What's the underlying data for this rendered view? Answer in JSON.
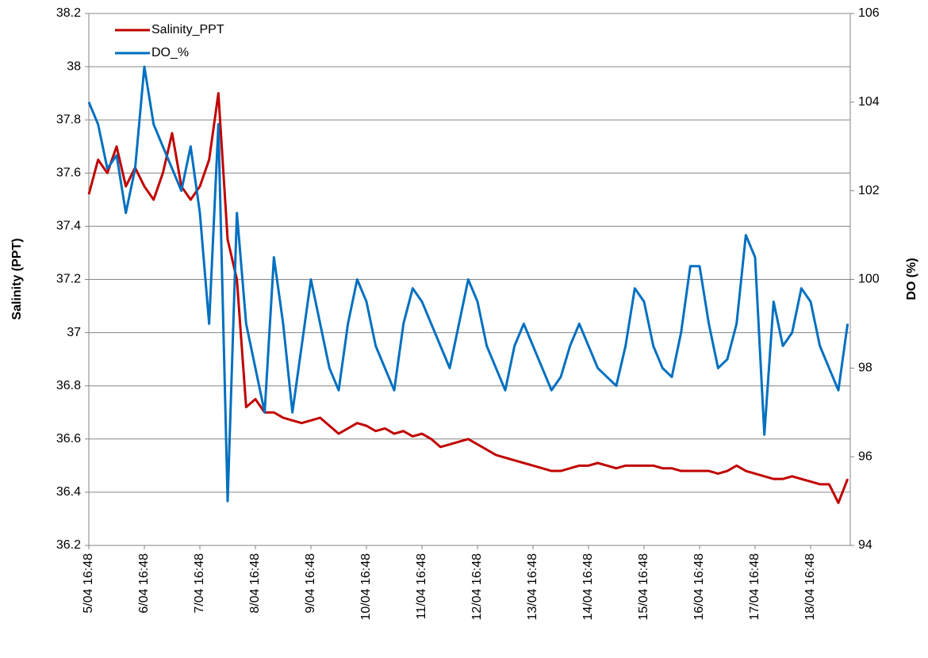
{
  "chart_data": {
    "type": "line",
    "y_label": "Salinity (PPT)",
    "y2_label": "DO (%)",
    "categories": [
      "5/04 16:48",
      null,
      null,
      null,
      null,
      null,
      "6/04 16:48",
      null,
      null,
      null,
      null,
      null,
      "7/04 16:48",
      null,
      null,
      null,
      null,
      null,
      "8/04 16:48",
      null,
      null,
      null,
      null,
      null,
      "9/04 16:48",
      null,
      null,
      null,
      null,
      null,
      "10/04 16:48",
      null,
      null,
      null,
      null,
      null,
      "11/04 16:48",
      null,
      null,
      null,
      null,
      null,
      "12/04 16:48",
      null,
      null,
      null,
      null,
      null,
      "13/04 16:48",
      null,
      null,
      null,
      null,
      null,
      "14/04 16:48",
      null,
      null,
      null,
      null,
      null,
      "15/04 16:48",
      null,
      null,
      null,
      null,
      null,
      "16/04 16:48",
      null,
      null,
      null,
      null,
      null,
      "17/04 16:48",
      null,
      null,
      null,
      null,
      null,
      "18/04 16:48",
      null,
      null,
      null,
      null
    ],
    "series": [
      {
        "name": "Salinity_PPT",
        "color": "#c00000",
        "values": [
          37.52,
          37.65,
          37.6,
          37.7,
          37.55,
          37.62,
          37.55,
          37.5,
          37.6,
          37.75,
          37.55,
          37.5,
          37.55,
          37.65,
          37.9,
          37.35,
          37.2,
          36.72,
          36.75,
          36.7,
          36.7,
          36.68,
          36.67,
          36.66,
          36.67,
          36.68,
          36.65,
          36.62,
          36.64,
          36.66,
          36.65,
          36.63,
          36.64,
          36.62,
          36.63,
          36.61,
          36.62,
          36.6,
          36.57,
          36.58,
          36.59,
          36.6,
          36.58,
          36.56,
          36.54,
          36.53,
          36.52,
          36.51,
          36.5,
          36.49,
          36.48,
          36.48,
          36.49,
          36.5,
          36.5,
          36.51,
          36.5,
          36.49,
          36.5,
          36.5,
          36.5,
          36.5,
          36.49,
          36.49,
          36.48,
          36.48,
          36.48,
          36.48,
          36.47,
          36.48,
          36.5,
          36.48,
          36.47,
          36.46,
          36.45,
          36.45,
          36.46,
          36.45,
          36.44,
          36.43,
          36.43,
          36.36,
          36.45
        ]
      },
      {
        "name": "DO_%",
        "color": "#0070c0",
        "axis": "y2",
        "values": [
          104,
          103.5,
          102.5,
          102.8,
          101.5,
          102.5,
          104.8,
          103.5,
          103,
          102.5,
          102,
          103,
          101.5,
          99,
          103.5,
          95,
          101.5,
          99,
          98,
          97,
          100.5,
          99,
          97,
          98.5,
          100,
          99,
          98,
          97.5,
          99,
          100,
          99.5,
          98.5,
          98,
          97.5,
          99,
          99.8,
          99.5,
          99,
          98.5,
          98,
          99,
          100,
          99.5,
          98.5,
          98,
          97.5,
          98.5,
          99,
          98.5,
          98,
          97.5,
          97.8,
          98.5,
          99,
          98.5,
          98,
          97.8,
          97.6,
          98.5,
          99.8,
          99.5,
          98.5,
          98,
          97.8,
          98.8,
          100.3,
          100.3,
          99,
          98,
          98.2,
          99,
          101,
          100.5,
          96.5,
          99.5,
          98.5,
          98.8,
          99.8,
          99.5,
          98.5,
          98,
          97.5,
          99
        ]
      }
    ],
    "ylim": [
      36.2,
      38.2
    ],
    "yticks": [
      36.2,
      36.4,
      36.6,
      36.8,
      37,
      37.2,
      37.4,
      37.6,
      37.8,
      38,
      38.2
    ],
    "y2lim": [
      94,
      106
    ],
    "y2ticks": [
      94,
      96,
      98,
      100,
      102,
      104,
      106
    ],
    "grid": true,
    "legend": "upper left"
  }
}
